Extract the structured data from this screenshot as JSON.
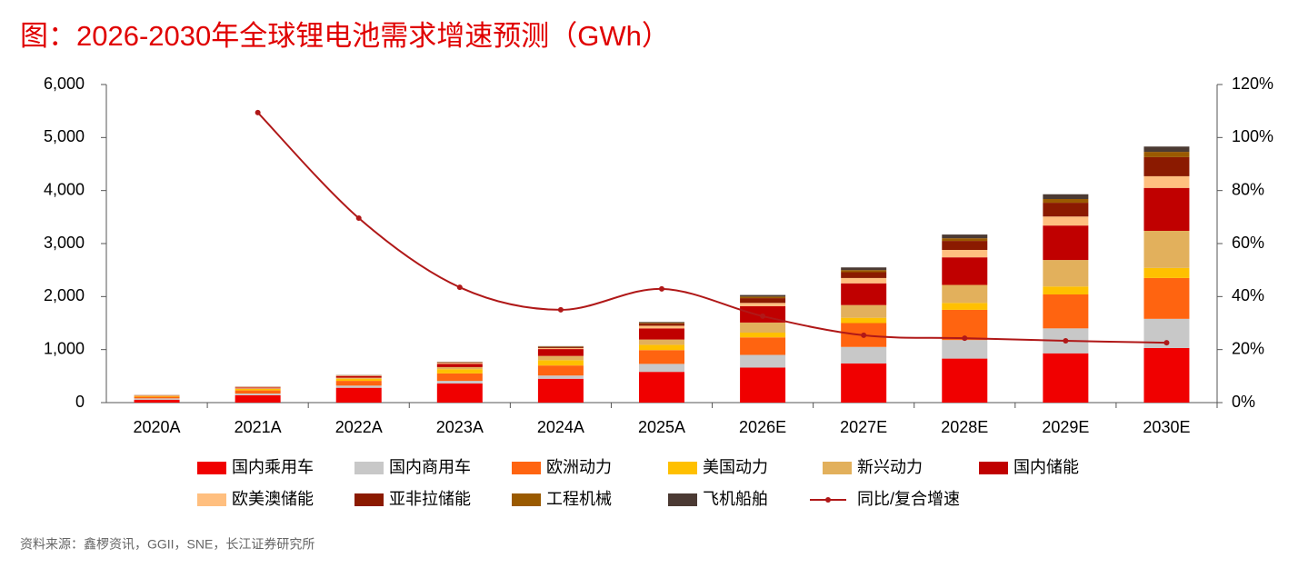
{
  "chart_data": {
    "type": "bar",
    "stacked": true,
    "title": "图：2026-2030年全球锂电池需求增速预测（GWh）",
    "source": "资料来源：鑫椤资讯，GGII，SNE，长江证券研究所",
    "categories": [
      "2020A",
      "2021A",
      "2022A",
      "2023A",
      "2024A",
      "2025A",
      "2026E",
      "2027E",
      "2028E",
      "2029E",
      "2030E"
    ],
    "ylim": [
      0,
      6000
    ],
    "yticks": [
      0,
      {
        "value": 1000,
        "label": "1,000"
      },
      {
        "value": 2000,
        "label": "2,000"
      },
      {
        "value": 3000,
        "label": "3,000"
      },
      {
        "value": 4000,
        "label": "4,000"
      },
      {
        "value": 5000,
        "label": "5,000"
      },
      {
        "value": 6000,
        "label": "6,000"
      }
    ],
    "y2lim": [
      0,
      120
    ],
    "y2ticks": [
      {
        "value": 0,
        "label": "0%"
      },
      {
        "value": 20,
        "label": "20%"
      },
      {
        "value": 40,
        "label": "40%"
      },
      {
        "value": 60,
        "label": "60%"
      },
      {
        "value": 80,
        "label": "80%"
      },
      {
        "value": 100,
        "label": "100%"
      },
      {
        "value": 120,
        "label": "120%"
      }
    ],
    "series": [
      {
        "name": "国内乘用车",
        "color": "#f00000",
        "values": [
          55,
          140,
          280,
          360,
          450,
          580,
          660,
          740,
          830,
          930,
          1030
        ]
      },
      {
        "name": "国内商用车",
        "color": "#c8c8c8",
        "values": [
          25,
          30,
          40,
          50,
          60,
          150,
          240,
          310,
          350,
          470,
          550
        ]
      },
      {
        "name": "欧洲动力",
        "color": "#ff6410",
        "values": [
          30,
          60,
          90,
          140,
          190,
          260,
          330,
          450,
          570,
          640,
          770
        ]
      },
      {
        "name": "美国动力",
        "color": "#ffc000",
        "values": [
          15,
          30,
          40,
          80,
          100,
          100,
          90,
          100,
          130,
          150,
          190
        ]
      },
      {
        "name": "新兴动力",
        "color": "#e2b05c",
        "values": [
          5,
          10,
          20,
          40,
          80,
          100,
          190,
          240,
          340,
          500,
          700
        ]
      },
      {
        "name": "国内储能",
        "color": "#c00000",
        "values": [
          5,
          15,
          30,
          60,
          130,
          210,
          310,
          410,
          520,
          650,
          810
        ]
      },
      {
        "name": "欧美澳储能",
        "color": "#ffbf7f",
        "values": [
          5,
          10,
          10,
          20,
          20,
          50,
          60,
          100,
          140,
          170,
          220
        ]
      },
      {
        "name": "亚非拉储能",
        "color": "#8b1a00",
        "values": [
          2,
          3,
          5,
          10,
          20,
          40,
          90,
          110,
          170,
          260,
          360
        ]
      },
      {
        "name": "工程机械",
        "color": "#9a5a00",
        "values": [
          1,
          2,
          3,
          5,
          10,
          15,
          30,
          40,
          50,
          70,
          100
        ]
      },
      {
        "name": "飞机船舶",
        "color": "#4b3a33",
        "values": [
          1,
          1,
          2,
          3,
          5,
          15,
          30,
          50,
          70,
          90,
          100
        ]
      },
      {
        "name": "同比/复合增速",
        "color": "#b01818",
        "type": "line",
        "axis": "y2",
        "values": [
          null,
          109.4,
          69.6,
          43.5,
          35.0,
          42.9,
          32.6,
          25.4,
          24.3,
          23.3,
          22.6
        ]
      }
    ]
  }
}
